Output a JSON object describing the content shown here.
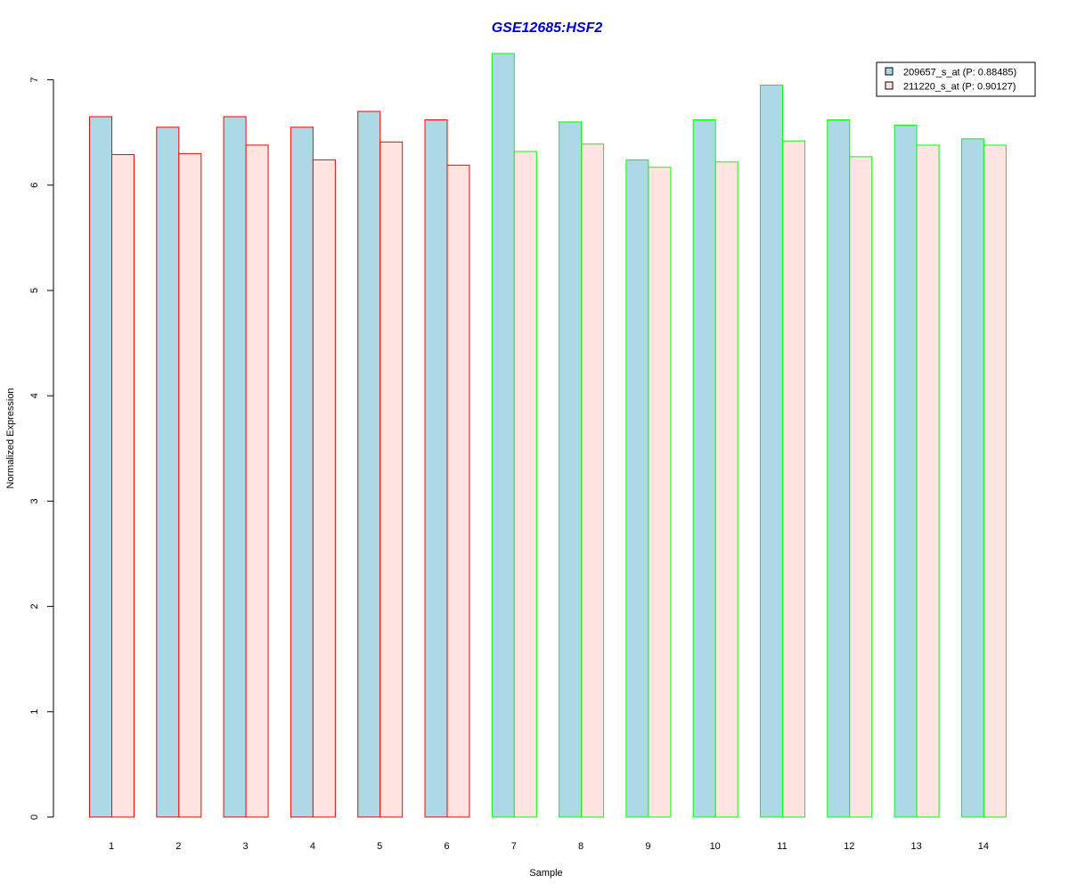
{
  "chart_data": {
    "type": "bar",
    "title": "GSE12685:HSF2",
    "xlabel": "Sample",
    "ylabel": "Normalized Expression",
    "ylim": [
      0,
      7
    ],
    "yticks": [
      "0",
      "1",
      "2",
      "3",
      "4",
      "5",
      "6",
      "7"
    ],
    "categories": [
      "1",
      "2",
      "3",
      "4",
      "5",
      "6",
      "7",
      "8",
      "9",
      "10",
      "11",
      "12",
      "13",
      "14"
    ],
    "series": [
      {
        "name": "209657_s_at (P: 0.88485)",
        "fill": "#add8e6",
        "values": [
          6.65,
          6.55,
          6.65,
          6.55,
          6.7,
          6.62,
          7.25,
          6.6,
          6.24,
          6.62,
          6.95,
          6.62,
          6.57,
          6.44
        ]
      },
      {
        "name": "211220_s_at (P: 0.90127)",
        "fill": "#ffe4e1",
        "values": [
          6.29,
          6.3,
          6.38,
          6.24,
          6.41,
          6.19,
          6.32,
          6.39,
          6.17,
          6.22,
          6.42,
          6.27,
          6.38,
          6.38
        ]
      }
    ],
    "group_border_colors": [
      "#ff0000",
      "#ff0000",
      "#ff0000",
      "#ff0000",
      "#ff0000",
      "#ff0000",
      "#00ff00",
      "#00ff00",
      "#00ff00",
      "#00ff00",
      "#00ff00",
      "#00ff00",
      "#00ff00",
      "#00ff00"
    ],
    "title_color": "#0000cc",
    "grid": false,
    "legend_position": "top-right"
  }
}
